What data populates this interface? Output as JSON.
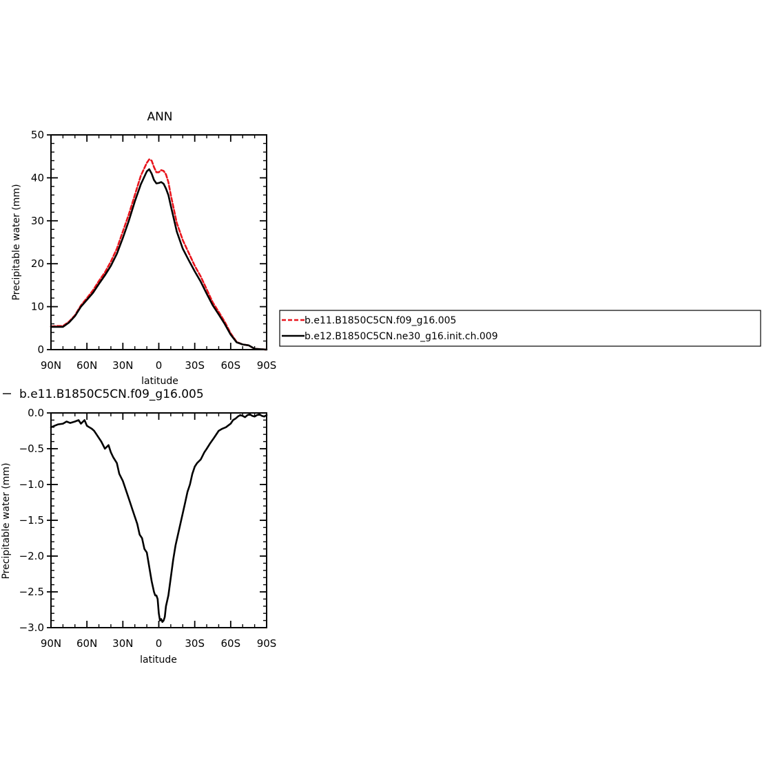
{
  "chart_data": [
    {
      "type": "line",
      "title": "ANN",
      "xlabel": "latitude",
      "ylabel": "Precipitable water (mm)",
      "xlim": [
        90,
        -90
      ],
      "ylim": [
        0,
        50
      ],
      "x_ticks": [
        {
          "value": 90,
          "label": "90N"
        },
        {
          "value": 60,
          "label": "60N"
        },
        {
          "value": 30,
          "label": "30N"
        },
        {
          "value": 0,
          "label": "0"
        },
        {
          "value": -30,
          "label": "30S"
        },
        {
          "value": -60,
          "label": "60S"
        },
        {
          "value": -90,
          "label": "90S"
        }
      ],
      "y_ticks": [
        0,
        10,
        20,
        30,
        40,
        50
      ],
      "grid": false,
      "legend": "right",
      "series": [
        {
          "name": "b.e11.B1850C5CN.f09_g16.005",
          "color": "#e8141c",
          "dash": "dashed",
          "x": [
            90,
            85,
            80,
            75,
            70,
            65,
            60,
            55,
            50,
            45,
            40,
            35,
            30,
            25,
            20,
            15,
            10,
            8,
            6,
            4,
            2,
            0,
            -2,
            -4,
            -6,
            -8,
            -10,
            -15,
            -20,
            -25,
            -30,
            -35,
            -40,
            -45,
            -50,
            -55,
            -60,
            -65,
            -70,
            -75,
            -80,
            -85,
            -90
          ],
          "y": [
            5.4,
            5.5,
            5.5,
            6.5,
            8.0,
            10.3,
            12.0,
            13.8,
            16.0,
            18.0,
            20.5,
            23.5,
            27.5,
            31.5,
            36.0,
            40.5,
            43.5,
            44.3,
            44.0,
            42.5,
            41.3,
            41.3,
            41.8,
            41.6,
            40.8,
            39.0,
            36.0,
            29.5,
            25.5,
            22.5,
            19.5,
            17.0,
            14.0,
            11.0,
            8.8,
            6.5,
            3.8,
            1.8,
            1.2,
            1.0,
            0.2,
            0.1,
            0.0
          ]
        },
        {
          "name": "b.e12.B1850C5CN.ne30_g16.init.ch.009",
          "color": "#000000",
          "dash": "solid",
          "x": [
            90,
            85,
            80,
            75,
            70,
            65,
            60,
            55,
            50,
            45,
            40,
            35,
            30,
            25,
            20,
            15,
            10,
            8,
            6,
            4,
            2,
            0,
            -2,
            -4,
            -6,
            -8,
            -10,
            -15,
            -20,
            -25,
            -30,
            -35,
            -40,
            -45,
            -50,
            -55,
            -60,
            -65,
            -70,
            -75,
            -80,
            -85,
            -90
          ],
          "y": [
            5.3,
            5.3,
            5.3,
            6.3,
            7.8,
            10.0,
            11.6,
            13.2,
            15.3,
            17.3,
            19.5,
            22.3,
            26.0,
            30.0,
            34.5,
            38.5,
            41.5,
            42.0,
            41.0,
            39.5,
            38.7,
            38.8,
            39.0,
            38.6,
            37.5,
            36.0,
            33.5,
            27.5,
            23.5,
            20.8,
            18.2,
            15.8,
            13.0,
            10.3,
            8.2,
            6.0,
            3.5,
            1.7,
            1.2,
            1.0,
            0.2,
            0.1,
            0.0
          ]
        }
      ]
    },
    {
      "type": "line",
      "title": "b.e11.B1850C5CN.f09_g16.005",
      "xlabel": "latitude",
      "ylabel": "Precipitable water (mm)",
      "xlim": [
        90,
        -90
      ],
      "ylim": [
        -3.0,
        0.0
      ],
      "x_ticks": [
        {
          "value": 90,
          "label": "90N"
        },
        {
          "value": 60,
          "label": "60N"
        },
        {
          "value": 30,
          "label": "30N"
        },
        {
          "value": 0,
          "label": "0"
        },
        {
          "value": -30,
          "label": "30S"
        },
        {
          "value": -60,
          "label": "60S"
        },
        {
          "value": -90,
          "label": "90S"
        }
      ],
      "y_ticks": [
        {
          "value": 0.0,
          "label": "0.0"
        },
        {
          "value": -0.5,
          "label": "−0.5"
        },
        {
          "value": -1.0,
          "label": "−1.0"
        },
        {
          "value": -1.5,
          "label": "−1.5"
        },
        {
          "value": -2.0,
          "label": "−2.0"
        },
        {
          "value": -2.5,
          "label": "−2.5"
        },
        {
          "value": -3.0,
          "label": "−3.0"
        }
      ],
      "grid": false,
      "series": [
        {
          "color": "#000000",
          "x": [
            90,
            87,
            84,
            80,
            77,
            74,
            70,
            67,
            65,
            62,
            60,
            58,
            56,
            54,
            52,
            48,
            45,
            42,
            40,
            38,
            35,
            33,
            30,
            28,
            26,
            24,
            22,
            20,
            18,
            16,
            14,
            12,
            10,
            8,
            6,
            4,
            3,
            2,
            1,
            0,
            -1,
            -2,
            -3,
            -4,
            -5,
            -6,
            -8,
            -10,
            -12,
            -14,
            -16,
            -18,
            -20,
            -22,
            -24,
            -26,
            -28,
            -30,
            -32,
            -35,
            -38,
            -40,
            -43,
            -46,
            -50,
            -53,
            -56,
            -60,
            -62,
            -64,
            -66,
            -68,
            -70,
            -72,
            -74,
            -76,
            -78,
            -80,
            -82,
            -84,
            -86,
            -88,
            -90
          ],
          "y": [
            -0.2,
            -0.18,
            -0.16,
            -0.15,
            -0.12,
            -0.14,
            -0.12,
            -0.1,
            -0.15,
            -0.1,
            -0.18,
            -0.2,
            -0.22,
            -0.25,
            -0.3,
            -0.4,
            -0.5,
            -0.45,
            -0.55,
            -0.62,
            -0.7,
            -0.85,
            -0.95,
            -1.05,
            -1.15,
            -1.25,
            -1.35,
            -1.45,
            -1.55,
            -1.7,
            -1.75,
            -1.9,
            -1.95,
            -2.15,
            -2.35,
            -2.5,
            -2.55,
            -2.55,
            -2.6,
            -2.8,
            -2.9,
            -2.88,
            -2.92,
            -2.9,
            -2.85,
            -2.7,
            -2.55,
            -2.3,
            -2.05,
            -1.85,
            -1.7,
            -1.55,
            -1.4,
            -1.25,
            -1.1,
            -1.0,
            -0.85,
            -0.75,
            -0.7,
            -0.65,
            -0.55,
            -0.5,
            -0.42,
            -0.35,
            -0.25,
            -0.22,
            -0.2,
            -0.15,
            -0.1,
            -0.08,
            -0.05,
            -0.03,
            -0.04,
            -0.06,
            -0.03,
            -0.02,
            -0.04,
            -0.05,
            -0.03,
            -0.02,
            -0.04,
            -0.05,
            -0.03
          ]
        }
      ]
    }
  ]
}
